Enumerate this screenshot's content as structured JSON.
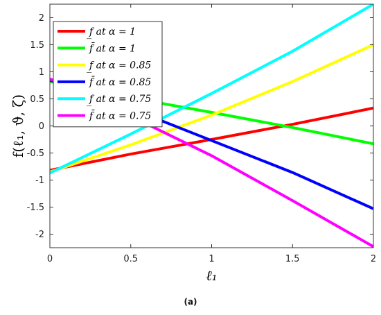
{
  "chart_data": {
    "type": "line",
    "title": "",
    "xlabel": "ℓ₁",
    "ylabel": "f(ℓ₁, ϑ, ζ)",
    "xlim": [
      0,
      2
    ],
    "ylim": [
      -2.25,
      2.25
    ],
    "xticks": [
      "0",
      "0.5",
      "1",
      "1.5",
      "2"
    ],
    "yticks": [
      "-2",
      "-1.5",
      "-1",
      "-0.5",
      "0",
      "0.5",
      "1",
      "1.5",
      "2"
    ],
    "grid": false,
    "legend_position": "top-left",
    "series": [
      {
        "name": "f̲ at α = 1",
        "color": "#ff0000",
        "x": [
          0,
          0.5,
          1,
          1.5,
          2
        ],
        "y": [
          -0.82,
          -0.52,
          -0.25,
          0.03,
          0.33
        ]
      },
      {
        "name": "f̄ at α = 1",
        "color": "#00ff00",
        "x": [
          0,
          0.5,
          1,
          1.5,
          2
        ],
        "y": [
          0.82,
          0.52,
          0.25,
          -0.03,
          -0.33
        ]
      },
      {
        "name": "f̲ at α = 0.85",
        "color": "#ffff00",
        "x": [
          0,
          0.5,
          1,
          1.5,
          2
        ],
        "y": [
          -0.85,
          -0.35,
          0.2,
          0.82,
          1.5
        ]
      },
      {
        "name": "f̄ at α = 0.85",
        "color": "#0000ff",
        "x": [
          0,
          0.5,
          1,
          1.5,
          2
        ],
        "y": [
          0.85,
          0.32,
          -0.27,
          -0.86,
          -1.53
        ]
      },
      {
        "name": "f̲ at α = 0.75",
        "color": "#00ffff",
        "x": [
          0,
          0.5,
          1,
          1.5,
          2
        ],
        "y": [
          -0.87,
          -0.15,
          0.6,
          1.38,
          2.25
        ]
      },
      {
        "name": "f̄ at α = 0.75",
        "color": "#ff00ff",
        "x": [
          0,
          0.5,
          1,
          1.5,
          2
        ],
        "y": [
          0.87,
          0.18,
          -0.55,
          -1.38,
          -2.23
        ]
      }
    ]
  },
  "caption": "(a)"
}
